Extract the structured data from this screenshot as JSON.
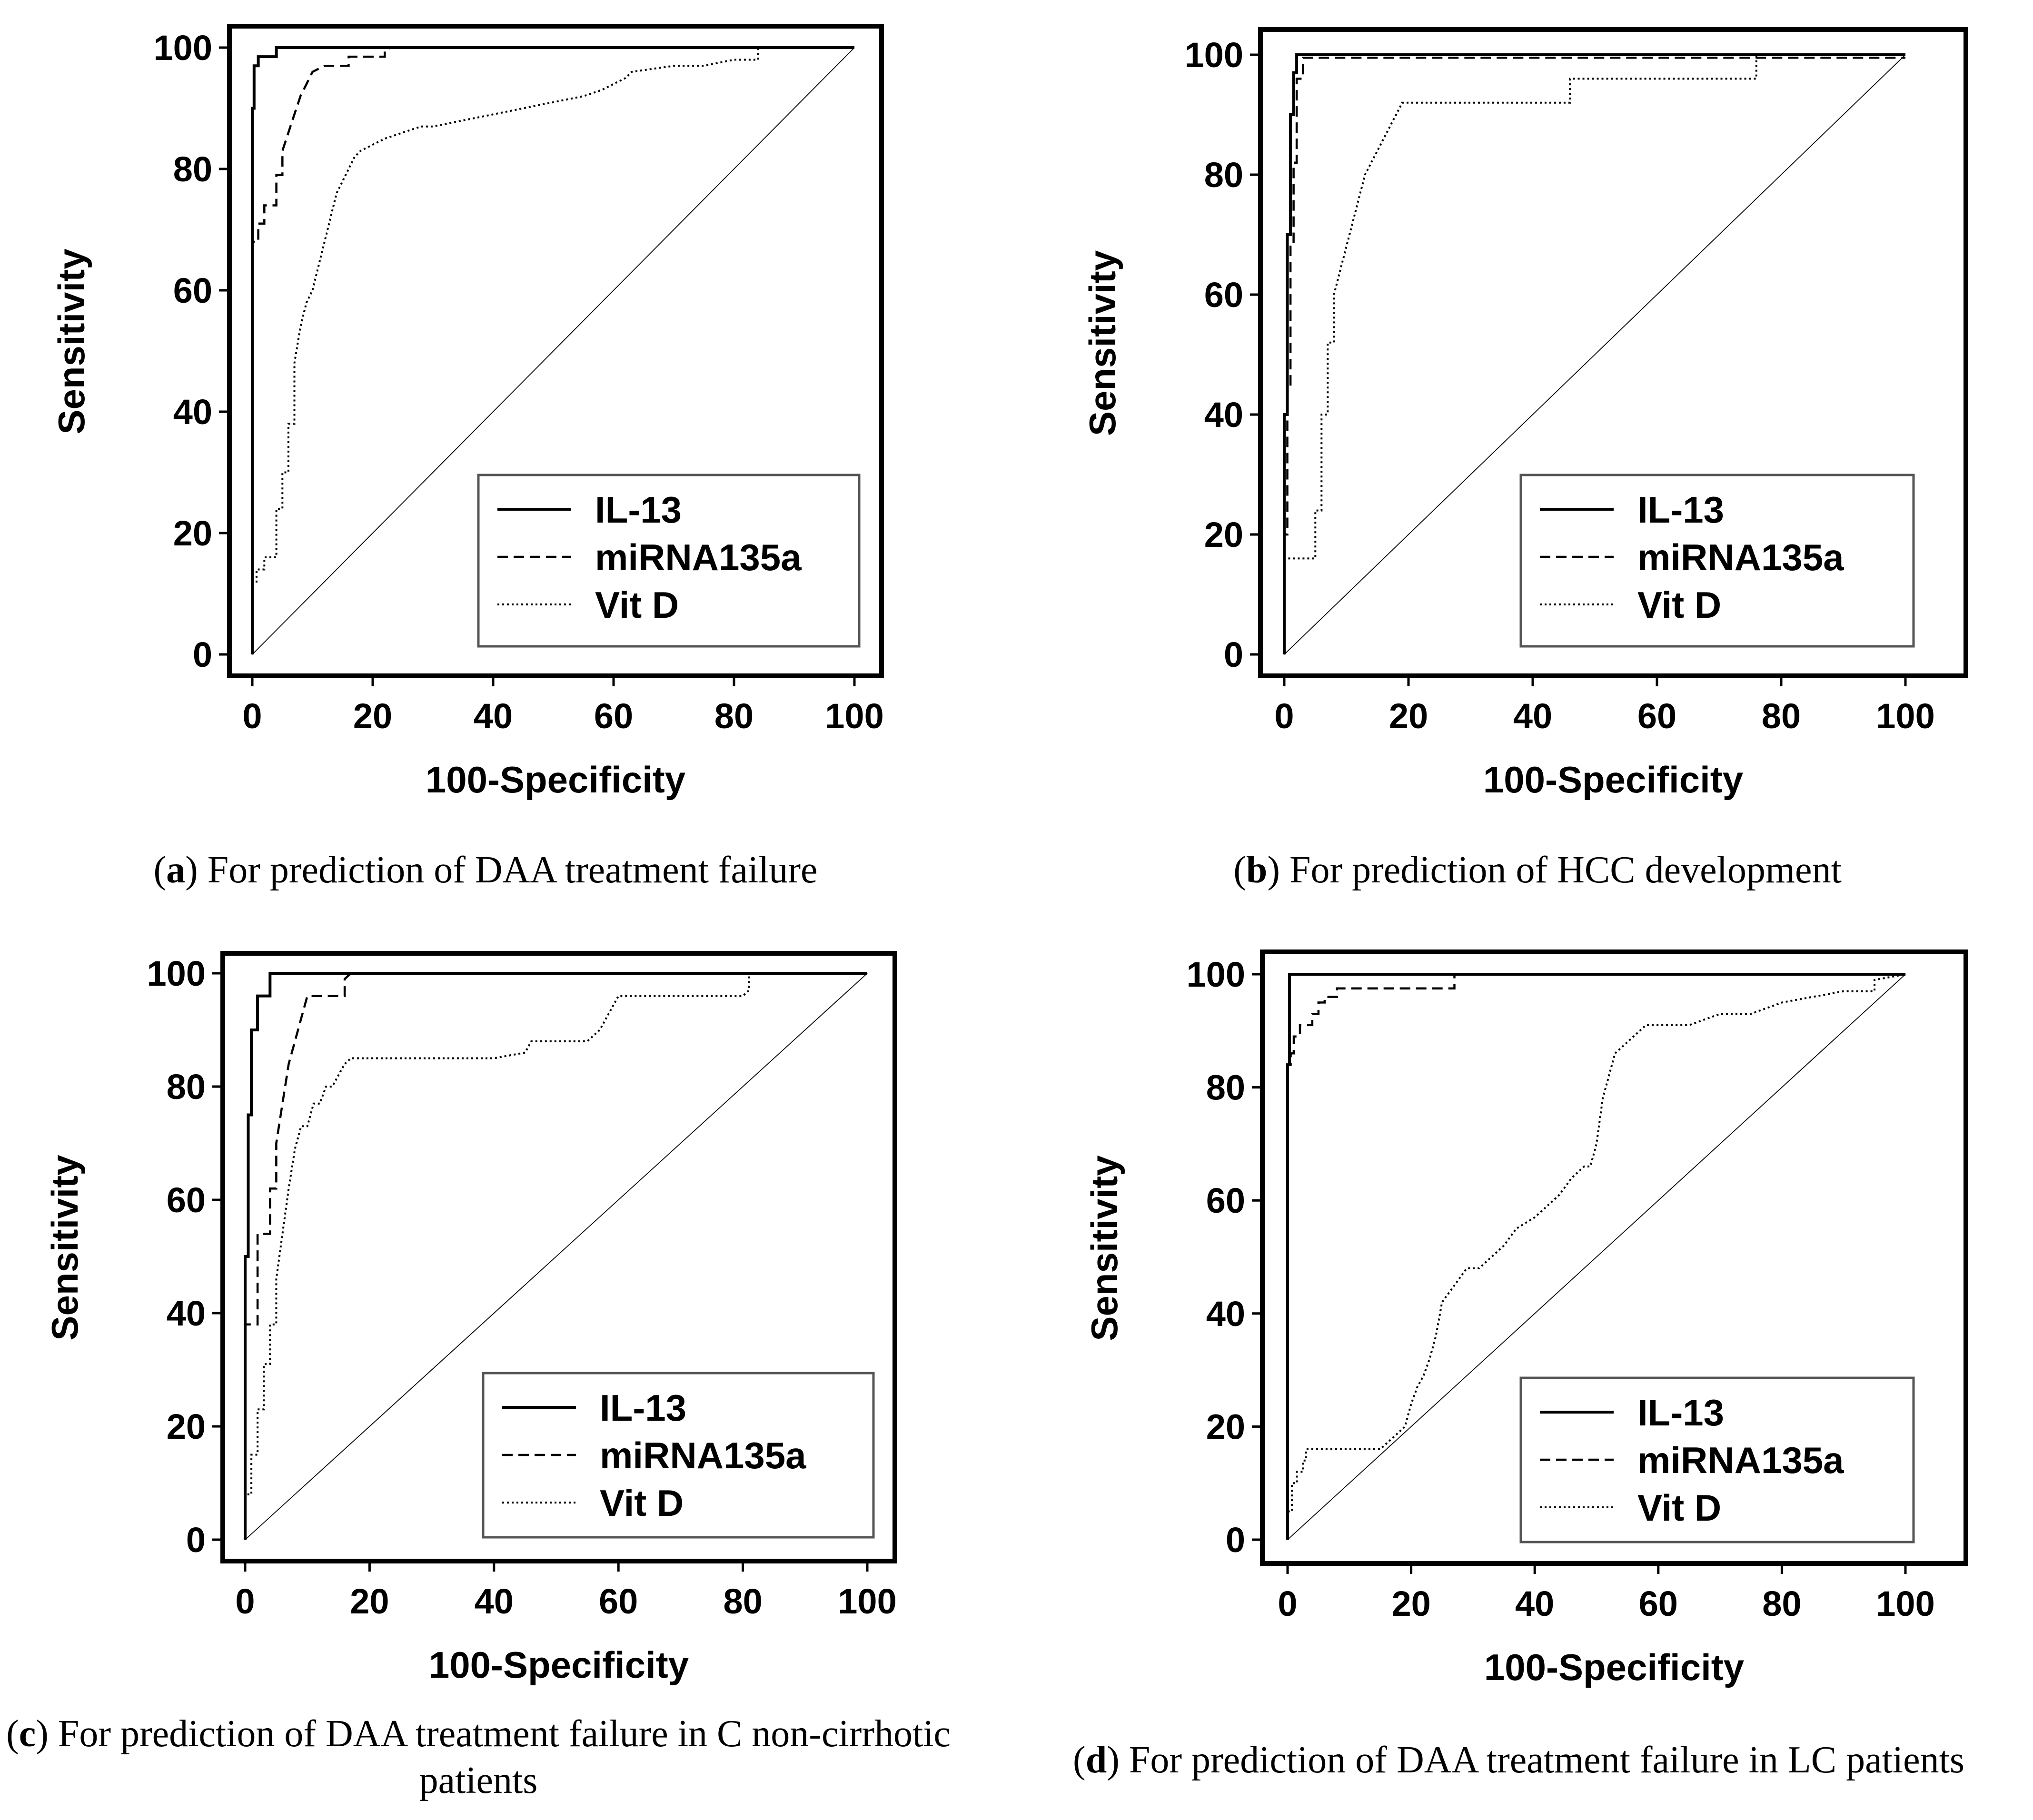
{
  "chart_data": [
    {
      "type": "line",
      "panel_letter": "a",
      "caption": "For prediction of DAA treatment failure",
      "xlabel": "100-Specificity",
      "ylabel": "Sensitivity",
      "xlim": [
        0,
        100
      ],
      "ylim": [
        0,
        100
      ],
      "xticks": [
        0,
        20,
        40,
        60,
        80,
        100
      ],
      "yticks": [
        0,
        20,
        40,
        60,
        80,
        100
      ],
      "legend_position": "bottom-right",
      "series": [
        {
          "name": "IL-13",
          "style": "solid",
          "x": [
            0,
            0,
            0.3,
            0.3,
            1,
            1,
            2,
            2,
            4,
            4,
            100
          ],
          "y": [
            0,
            90,
            90,
            97,
            97,
            98.5,
            98.5,
            98.5,
            98.5,
            100,
            100
          ]
        },
        {
          "name": "miRNA135a",
          "style": "dashed",
          "x": [
            0,
            0,
            1,
            1,
            2,
            2,
            3,
            3,
            4,
            4,
            5,
            5,
            6,
            7,
            8,
            9,
            10,
            11,
            12,
            13,
            16,
            16,
            22,
            22,
            23,
            100
          ],
          "y": [
            0,
            68,
            68,
            71,
            71,
            74,
            74,
            74,
            74,
            79,
            79,
            83,
            86,
            89,
            92,
            94,
            96,
            96.5,
            97,
            97,
            97,
            98.5,
            98.5,
            99.5,
            100,
            100
          ]
        },
        {
          "name": "Vit D",
          "style": "dotted",
          "x": [
            0,
            0,
            0.7,
            0.7,
            2,
            2,
            4,
            4,
            5,
            5,
            6,
            6,
            7,
            7,
            8,
            9,
            10,
            11,
            12,
            13,
            14,
            15,
            16,
            17,
            18,
            20,
            22,
            25,
            28,
            30,
            35,
            40,
            45,
            50,
            55,
            58,
            60,
            62,
            63,
            70,
            75,
            80,
            84,
            84,
            100
          ],
          "y": [
            0,
            12,
            12,
            14,
            14,
            16,
            16,
            24,
            24,
            30,
            30,
            38,
            38,
            48,
            54,
            58,
            60,
            64,
            68,
            72,
            76,
            78,
            80,
            82,
            83,
            84,
            85,
            86,
            87,
            87,
            88,
            89,
            90,
            91,
            92,
            93,
            94,
            95,
            96,
            97,
            97,
            98,
            98,
            100,
            100
          ]
        },
        {
          "name": "",
          "style": "reference",
          "x": [
            0,
            100
          ],
          "y": [
            0,
            100
          ]
        }
      ]
    },
    {
      "type": "line",
      "panel_letter": "b",
      "caption": "For prediction of HCC development",
      "xlabel": "100-Specificity",
      "ylabel": "Sensitivity",
      "xlim": [
        0,
        100
      ],
      "ylim": [
        0,
        100
      ],
      "xticks": [
        0,
        20,
        40,
        60,
        80,
        100
      ],
      "yticks": [
        0,
        20,
        40,
        60,
        80,
        100
      ],
      "legend_position": "bottom-right",
      "series": [
        {
          "name": "IL-13",
          "style": "solid",
          "x": [
            0,
            0,
            0.5,
            0.5,
            1,
            1,
            1.5,
            1.5,
            2,
            2,
            100
          ],
          "y": [
            0,
            40,
            40,
            70,
            70,
            90,
            90,
            97,
            97,
            100,
            100
          ]
        },
        {
          "name": "miRNA135a",
          "style": "dashed",
          "x": [
            0,
            0,
            0.5,
            0.5,
            1,
            1,
            1.5,
            1.5,
            2,
            2,
            3,
            3,
            100
          ],
          "y": [
            0,
            20,
            20,
            45,
            45,
            68,
            68,
            82,
            82,
            96,
            96,
            99.5,
            99.5
          ]
        },
        {
          "name": "Vit D",
          "style": "dotted",
          "x": [
            0,
            0,
            1,
            1,
            5,
            5,
            6,
            6,
            7,
            7,
            8,
            8,
            9,
            10,
            11,
            12,
            13,
            14,
            15,
            16,
            17,
            18,
            19,
            20,
            22,
            30,
            46,
            46,
            76,
            76,
            100
          ],
          "y": [
            0,
            16,
            16,
            16,
            16,
            24,
            24,
            40,
            40,
            52,
            52,
            60,
            64,
            68,
            72,
            76,
            80,
            82,
            84,
            86,
            88,
            90,
            92,
            92,
            92,
            92,
            92,
            96,
            96,
            100,
            100
          ]
        },
        {
          "name": "",
          "style": "reference",
          "x": [
            0,
            100
          ],
          "y": [
            0,
            100
          ]
        }
      ]
    },
    {
      "type": "line",
      "panel_letter": "c",
      "caption": "For prediction of DAA treatment failure in C non-cirrhotic patients",
      "xlabel": "100-Specificity",
      "ylabel": "Sensitivity",
      "xlim": [
        0,
        100
      ],
      "ylim": [
        0,
        100
      ],
      "xticks": [
        0,
        20,
        40,
        60,
        80,
        100
      ],
      "yticks": [
        0,
        20,
        40,
        60,
        80,
        100
      ],
      "legend_position": "bottom-right",
      "series": [
        {
          "name": "IL-13",
          "style": "solid",
          "x": [
            0,
            0,
            0.5,
            0.5,
            1,
            1,
            2,
            2,
            3,
            3,
            4,
            4,
            100
          ],
          "y": [
            0,
            50,
            50,
            75,
            75,
            90,
            90,
            96,
            96,
            96,
            96,
            100,
            100
          ]
        },
        {
          "name": "miRNA135a",
          "style": "dashed",
          "x": [
            0,
            0,
            1,
            1,
            2,
            2,
            3,
            3,
            4,
            4,
            5,
            5,
            6,
            7,
            8,
            9,
            10,
            12,
            14,
            16,
            16,
            17,
            100
          ],
          "y": [
            0,
            38,
            38,
            38,
            38,
            54,
            54,
            54,
            54,
            62,
            62,
            70,
            77,
            84,
            88,
            92,
            96,
            96,
            96,
            96,
            99,
            100,
            100
          ]
        },
        {
          "name": "Vit D",
          "style": "dotted",
          "x": [
            0,
            0,
            1,
            1,
            2,
            2,
            3,
            3,
            4,
            4,
            5,
            5,
            6,
            7,
            8,
            9,
            10,
            11,
            12,
            13,
            14,
            15,
            16,
            17,
            20,
            25,
            30,
            40,
            45,
            46,
            55,
            57,
            58,
            60,
            70,
            80,
            81,
            81,
            100
          ],
          "y": [
            0,
            8,
            8,
            15,
            15,
            23,
            23,
            31,
            31,
            38,
            38,
            46,
            54,
            62,
            69,
            73,
            73,
            77,
            77,
            80,
            80,
            82,
            84,
            85,
            85,
            85,
            85,
            85,
            86,
            88,
            88,
            90,
            92,
            96,
            96,
            96,
            97,
            100,
            100
          ]
        },
        {
          "name": "",
          "style": "reference",
          "x": [
            0,
            100
          ],
          "y": [
            0,
            100
          ]
        }
      ]
    },
    {
      "type": "line",
      "panel_letter": "d",
      "caption": "For prediction of DAA treatment failure in LC patients",
      "xlabel": "100-Specificity",
      "ylabel": "Sensitivity",
      "xlim": [
        0,
        100
      ],
      "ylim": [
        0,
        100
      ],
      "xticks": [
        0,
        20,
        40,
        60,
        80,
        100
      ],
      "yticks": [
        0,
        20,
        40,
        60,
        80,
        100
      ],
      "legend_position": "bottom-right",
      "series": [
        {
          "name": "IL-13",
          "style": "solid",
          "x": [
            0,
            0,
            0.3,
            0.3,
            100
          ],
          "y": [
            0,
            84,
            84,
            100,
            100
          ]
        },
        {
          "name": "miRNA135a",
          "style": "dashed",
          "x": [
            0,
            0,
            0.5,
            0.5,
            1,
            1,
            2,
            2,
            3,
            3,
            4,
            4,
            5,
            5,
            6,
            6,
            8,
            8,
            27,
            27,
            100
          ],
          "y": [
            0,
            84,
            84,
            86,
            86,
            89,
            89,
            91,
            91,
            91,
            91,
            93,
            93,
            95,
            95,
            96,
            96,
            97.5,
            97.5,
            100,
            100
          ]
        },
        {
          "name": "Vit D",
          "style": "dotted",
          "x": [
            0,
            0,
            0.7,
            0.7,
            1.5,
            1.5,
            2.5,
            2.5,
            3,
            3,
            15,
            15,
            17,
            17,
            19,
            19,
            20,
            20,
            21,
            21,
            22,
            22,
            23,
            24,
            25,
            27,
            29,
            31,
            33,
            35,
            37,
            40,
            42,
            44,
            46,
            48,
            49,
            50,
            51,
            53,
            55,
            58,
            62,
            65,
            70,
            75,
            80,
            85,
            90,
            95,
            95,
            100
          ],
          "y": [
            0,
            5,
            5,
            10,
            10,
            12,
            12,
            14,
            14,
            16,
            16,
            16,
            18,
            18,
            20,
            20,
            24,
            24,
            27,
            27,
            29,
            29,
            32,
            36,
            42,
            45,
            48,
            48,
            50,
            52,
            55,
            57,
            59,
            61,
            64,
            66,
            66,
            70,
            78,
            86,
            88,
            91,
            91,
            91,
            93,
            93,
            95,
            96,
            97,
            97,
            99,
            100
          ]
        },
        {
          "name": "",
          "style": "reference",
          "x": [
            0,
            100
          ],
          "y": [
            0,
            100
          ]
        }
      ]
    }
  ]
}
